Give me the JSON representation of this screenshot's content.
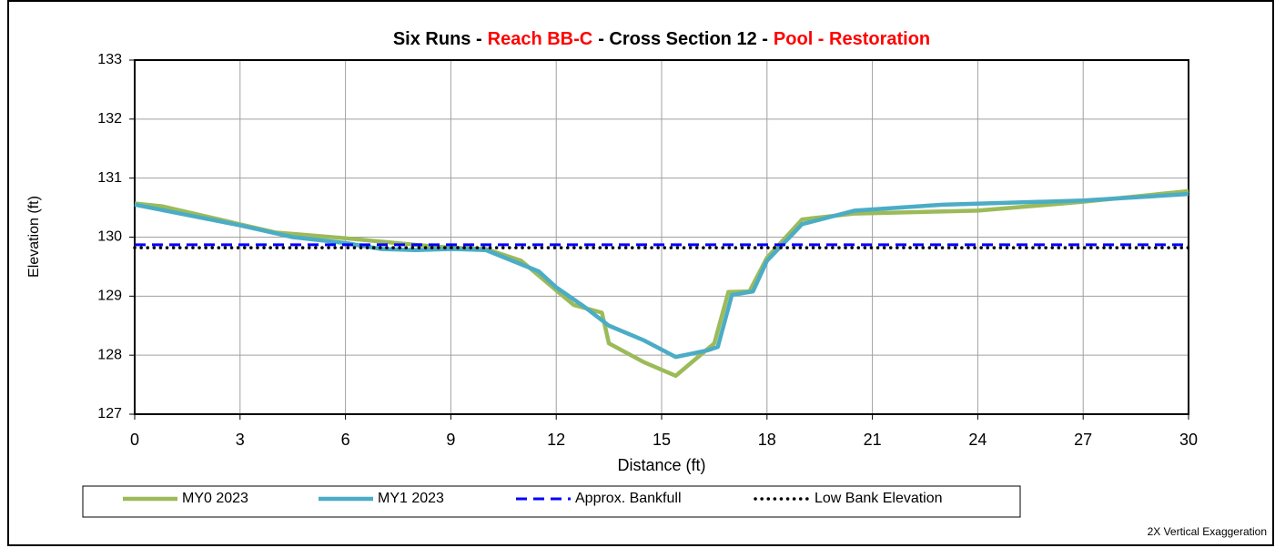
{
  "chart_data": {
    "type": "line",
    "title_parts": [
      {
        "text": "Six Runs -",
        "color": "#000000"
      },
      {
        "text": "Reach BB-C",
        "color": "#ff0000"
      },
      {
        "text": "- Cross Section 12 -",
        "color": "#000000"
      },
      {
        "text": "Pool - Restoration",
        "color": "#ff0000"
      }
    ],
    "x_label": "Distance (ft)",
    "y_label": "Elevation (ft)",
    "note": "2X Vertical Exaggeration",
    "xlim": [
      0,
      30
    ],
    "xticks": [
      0,
      3,
      6,
      9,
      12,
      15,
      18,
      21,
      24,
      27,
      30
    ],
    "ylim": [
      127,
      133
    ],
    "yticks": [
      127,
      128,
      129,
      130,
      131,
      132,
      133
    ],
    "grid": true,
    "legend": "bottom",
    "series": [
      {
        "name": "MY0 2023",
        "color": "#9bbb59",
        "style": "solid",
        "x": [
          0,
          0.8,
          4,
          6,
          8,
          9,
          10,
          11,
          12,
          12.5,
          13.3,
          13.5,
          14.5,
          15.4,
          16,
          16.5,
          16.9,
          17.5,
          18,
          19,
          20.5,
          24,
          27,
          30
        ],
        "values": [
          130.57,
          130.52,
          130.08,
          129.98,
          129.87,
          129.82,
          129.8,
          129.6,
          129.1,
          128.85,
          128.72,
          128.2,
          127.88,
          127.65,
          127.95,
          128.2,
          129.07,
          129.08,
          129.65,
          130.3,
          130.4,
          130.45,
          130.6,
          130.78
        ]
      },
      {
        "name": "MY1 2023",
        "color": "#4bacc6",
        "style": "solid",
        "x": [
          0,
          3,
          4.5,
          6,
          7,
          8,
          9,
          10,
          11.5,
          12,
          12.8,
          13.5,
          14.5,
          15.4,
          16.3,
          16.6,
          17,
          17.6,
          18,
          19,
          20.5,
          23,
          27,
          30
        ],
        "values": [
          130.55,
          130.2,
          130.0,
          129.9,
          129.8,
          129.78,
          129.8,
          129.78,
          129.42,
          129.15,
          128.82,
          128.5,
          128.25,
          127.97,
          128.08,
          128.14,
          129.02,
          129.08,
          129.6,
          130.22,
          130.45,
          130.55,
          130.62,
          130.73
        ]
      },
      {
        "name": "Approx. Bankfull",
        "color": "#0000ff",
        "style": "dashed",
        "x": [
          0,
          30
        ],
        "values": [
          129.87,
          129.87
        ]
      },
      {
        "name": "Low Bank Elevation",
        "color": "#000000",
        "style": "dotted",
        "x": [
          0,
          30
        ],
        "values": [
          129.82,
          129.82
        ]
      }
    ]
  }
}
